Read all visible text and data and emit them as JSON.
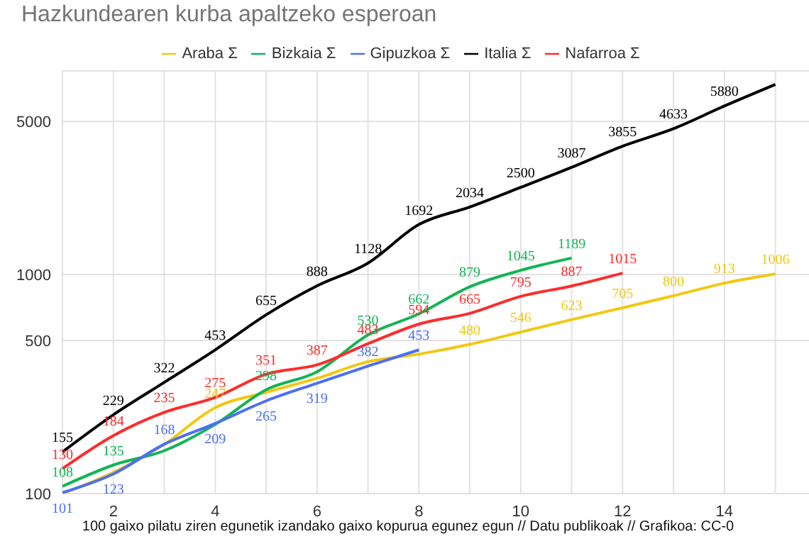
{
  "chart_data": {
    "type": "line",
    "title": "Hazkundearen kurba apaltzeko esperoan",
    "xlabel": "100 gaixo pilatu ziren egunetik izandako gaixo kopurua egunez egun // Datu publikoak // Grafikoa: CC-0",
    "x": [
      1,
      2,
      3,
      4,
      5,
      6,
      7,
      8,
      9,
      10,
      11,
      12,
      13,
      14,
      15
    ],
    "series": [
      {
        "name": "Araba Σ",
        "color": "#f2c811",
        "values": [
          100,
          125,
          168,
          247,
          290,
          336,
          400,
          433,
          480,
          546,
          623,
          705,
          800,
          913,
          1006
        ],
        "value_labels": [
          null,
          null,
          null,
          "247",
          null,
          null,
          null,
          null,
          "480",
          "546",
          "623",
          "705",
          "800",
          "913",
          "1006"
        ]
      },
      {
        "name": "Bizkaia Σ",
        "color": "#13b454",
        "values": [
          108,
          135,
          157,
          207,
          298,
          360,
          530,
          662,
          879,
          1045,
          1189,
          null,
          null,
          null,
          null
        ],
        "value_labels": [
          "108",
          "135",
          null,
          null,
          "298",
          null,
          "530",
          "662",
          "879",
          "1045",
          "1189",
          null,
          null,
          null,
          null
        ]
      },
      {
        "name": "Gipuzkoa Σ",
        "color": "#4c6ef5",
        "values": [
          101,
          123,
          168,
          209,
          265,
          319,
          382,
          453,
          null,
          null,
          null,
          null,
          null,
          null,
          null
        ],
        "value_labels": [
          "101",
          "123",
          "168",
          "209",
          "265",
          "319",
          "382",
          "453",
          null,
          null,
          null,
          null,
          null,
          null,
          null
        ]
      },
      {
        "name": "Nafarroa Σ",
        "color": "#ff2b2b",
        "values": [
          130,
          184,
          235,
          275,
          351,
          387,
          483,
          594,
          665,
          795,
          887,
          1015,
          null,
          null,
          null
        ],
        "value_labels": [
          "130",
          "184",
          "235",
          "275",
          "351",
          "387",
          "483",
          "594",
          "665",
          "795",
          "887",
          "1015",
          null,
          null,
          null
        ]
      },
      {
        "name": "Italia Σ",
        "color": "#000000",
        "values": [
          155,
          229,
          322,
          453,
          655,
          888,
          1128,
          1692,
          2034,
          2500,
          3087,
          3855,
          4633,
          5880,
          7375
        ],
        "value_labels": [
          "155",
          "229",
          "322",
          "453",
          "655",
          "888",
          "1128",
          "1692",
          "2034",
          "2500",
          "3087",
          "3855",
          "4633",
          "5880",
          null
        ]
      }
    ],
    "log": "y",
    "xlim": [
      1,
      15.8
    ],
    "xticks": [
      {
        "value": 1,
        "label": null
      },
      2,
      {
        "value": 3,
        "label": null
      },
      4,
      {
        "value": 5,
        "label": null
      },
      6,
      {
        "value": 7,
        "label": null
      },
      8,
      {
        "value": 9,
        "label": null
      },
      10,
      {
        "value": 11,
        "label": null
      },
      12,
      {
        "value": 13,
        "label": null
      },
      14,
      {
        "value": 15,
        "label": null
      }
    ],
    "ylim": [
      100,
      8500
    ],
    "yticks": [
      100,
      500,
      1000,
      5000
    ],
    "grid": true,
    "legend": "top",
    "marker": "none",
    "line_style": "solid"
  }
}
